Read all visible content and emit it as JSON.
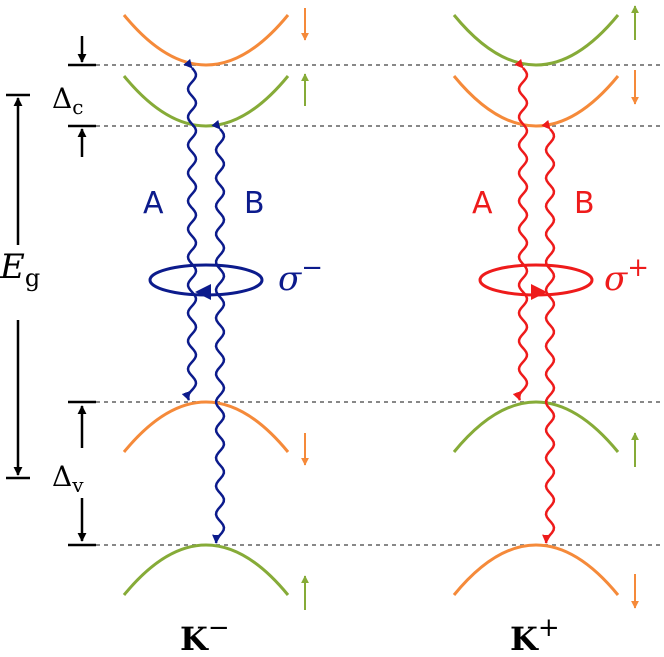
{
  "labels": {
    "gap": "E",
    "gap_sub": "g",
    "delta_c": "Δ",
    "delta_c_sub": "c",
    "delta_v": "Δ",
    "delta_v_sub": "v",
    "transition_a": "A",
    "transition_b": "B",
    "sigma": "σ",
    "sigma_minus_sup": "−",
    "sigma_plus_sup": "+",
    "valley_k": "K",
    "valley_minus_sup": "−",
    "valley_plus_sup": "+"
  },
  "colors": {
    "orange": "#f58a3a",
    "green": "#86ab38",
    "blue": "#0c1b8c",
    "red": "#ee1b1b",
    "black": "#000000",
    "dash": "#888888"
  }
}
